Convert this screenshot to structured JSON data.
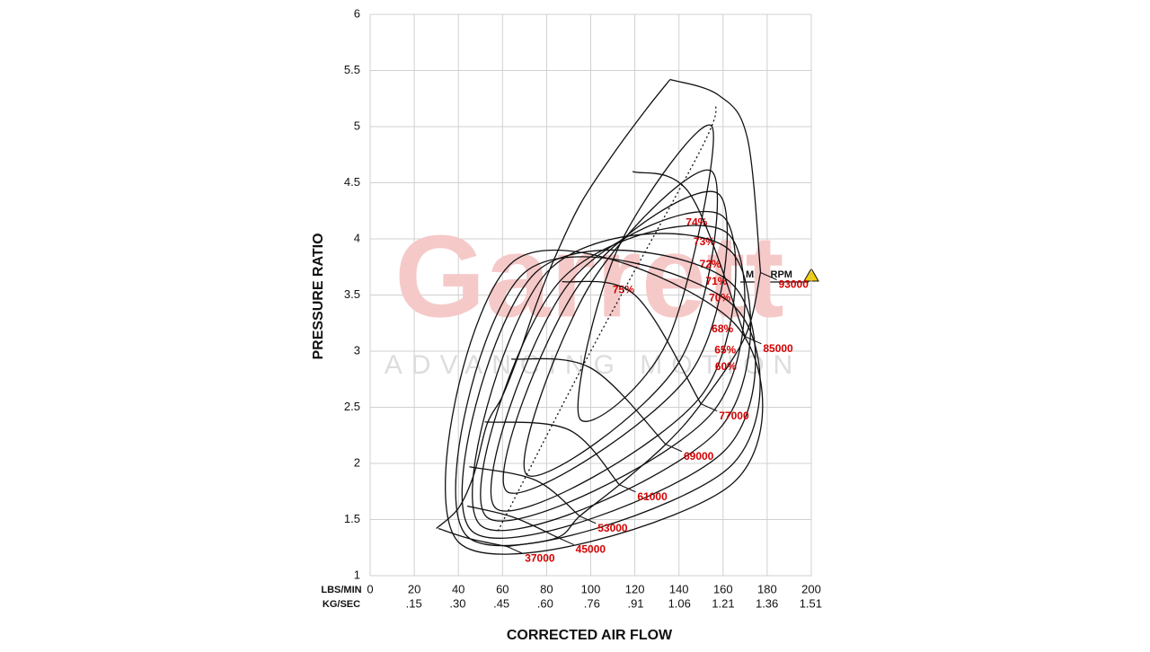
{
  "chart_data": {
    "type": "compressor_map",
    "x_label": "CORRECTED AIR FLOW",
    "y_label": "PRESSURE RATIO",
    "x_unit_label": "LBS/MIN",
    "x2_unit_label": "KG/SEC",
    "annotation": "MAX RPM",
    "watermark": {
      "brand": "Garrett",
      "tagline": "ADVANCING MOTION"
    },
    "xlim": [
      0,
      200
    ],
    "xticks": [
      0,
      20,
      40,
      60,
      80,
      100,
      120,
      140,
      160,
      180,
      200
    ],
    "x2lim": [
      0,
      1.512
    ],
    "x2ticks": [
      {
        "value": 0.15,
        "label": ".15"
      },
      {
        "value": 0.3,
        "label": ".30"
      },
      {
        "value": 0.45,
        "label": ".45"
      },
      {
        "value": 0.6,
        "label": ".60"
      },
      {
        "value": 0.76,
        "label": ".76"
      },
      {
        "value": 0.91,
        "label": ".91"
      },
      {
        "value": 1.06,
        "label": "1.06"
      },
      {
        "value": 1.21,
        "label": "1.21"
      },
      {
        "value": 1.36,
        "label": "1.36"
      },
      {
        "value": 1.51,
        "label": "1.51"
      }
    ],
    "ylim": [
      1,
      6
    ],
    "yticks": [
      1,
      1.5,
      2,
      2.5,
      3,
      3.5,
      4,
      4.5,
      5,
      5.5,
      6
    ],
    "grid": true,
    "surge_line": {
      "x": [
        30,
        40,
        47,
        53,
        60,
        68,
        75,
        83,
        95,
        110,
        125,
        136
      ],
      "y": [
        1.42,
        1.6,
        1.9,
        2.35,
        2.6,
        3.0,
        3.4,
        3.8,
        4.3,
        4.75,
        5.15,
        5.42
      ]
    },
    "peak_efficiency_line": {
      "x": [
        58,
        100,
        150,
        157
      ],
      "y": [
        1.4,
        3.0,
        4.8,
        5.2
      ]
    },
    "speed_lines": [
      {
        "rpm": 37000,
        "x": [
          31,
          45,
          62
        ],
        "y": [
          1.42,
          1.33,
          1.26
        ]
      },
      {
        "rpm": 45000,
        "x": [
          44,
          65,
          85
        ],
        "y": [
          1.62,
          1.52,
          1.34
        ]
      },
      {
        "rpm": 53000,
        "x": [
          45,
          75,
          95
        ],
        "y": [
          1.97,
          1.85,
          1.53
        ]
      },
      {
        "rpm": 61000,
        "x": [
          52,
          90,
          113
        ],
        "y": [
          2.37,
          2.3,
          1.81
        ]
      },
      {
        "rpm": 69000,
        "x": [
          64,
          100,
          134
        ],
        "y": [
          2.93,
          2.85,
          2.17
        ]
      },
      {
        "rpm": 77000,
        "x": [
          87,
          120,
          150
        ],
        "y": [
          3.62,
          3.5,
          2.53
        ]
      },
      {
        "rpm": 85000,
        "x": [
          119,
          145,
          170
        ],
        "y": [
          4.6,
          4.4,
          3.13
        ]
      },
      {
        "rpm": 93000,
        "x": [
          136,
          158,
          171,
          177
        ],
        "y": [
          5.42,
          5.28,
          4.9,
          3.7
        ]
      }
    ],
    "efficiency_islands": {
      "values": [
        75,
        74,
        73,
        72,
        71,
        70,
        68,
        65,
        60
      ],
      "value_labels": [
        "75%",
        "74%",
        "73%",
        "72%",
        "71%",
        "70%",
        "68%",
        "65%",
        "60%"
      ],
      "contours": [
        {
          "x": [
            95,
            112,
            155,
            135
          ],
          "y": [
            2.4,
            3.9,
            5.0,
            3.1
          ]
        },
        {
          "x": [
            71,
            100,
            155,
            140
          ],
          "y": [
            1.9,
            3.6,
            4.6,
            2.9
          ]
        },
        {
          "x": [
            62,
            95,
            158,
            145
          ],
          "y": [
            1.75,
            3.6,
            4.4,
            2.8
          ]
        },
        {
          "x": [
            57,
            90,
            160,
            150
          ],
          "y": [
            1.6,
            3.6,
            4.2,
            2.6
          ]
        },
        {
          "x": [
            53,
            85,
            162,
            155
          ],
          "y": [
            1.52,
            3.6,
            4.05,
            2.45
          ]
        },
        {
          "x": [
            50,
            80,
            163,
            158
          ],
          "y": [
            1.45,
            3.7,
            3.9,
            2.3
          ]
        },
        {
          "x": [
            46,
            75,
            164,
            160
          ],
          "y": [
            1.4,
            3.7,
            3.6,
            2.1
          ]
        },
        {
          "x": [
            44,
            70,
            165,
            162
          ],
          "y": [
            1.35,
            3.7,
            3.4,
            1.95
          ]
        },
        {
          "x": [
            40,
            65,
            165,
            163
          ],
          "y": [
            1.3,
            3.8,
            3.25,
            1.8
          ]
        }
      ]
    }
  }
}
